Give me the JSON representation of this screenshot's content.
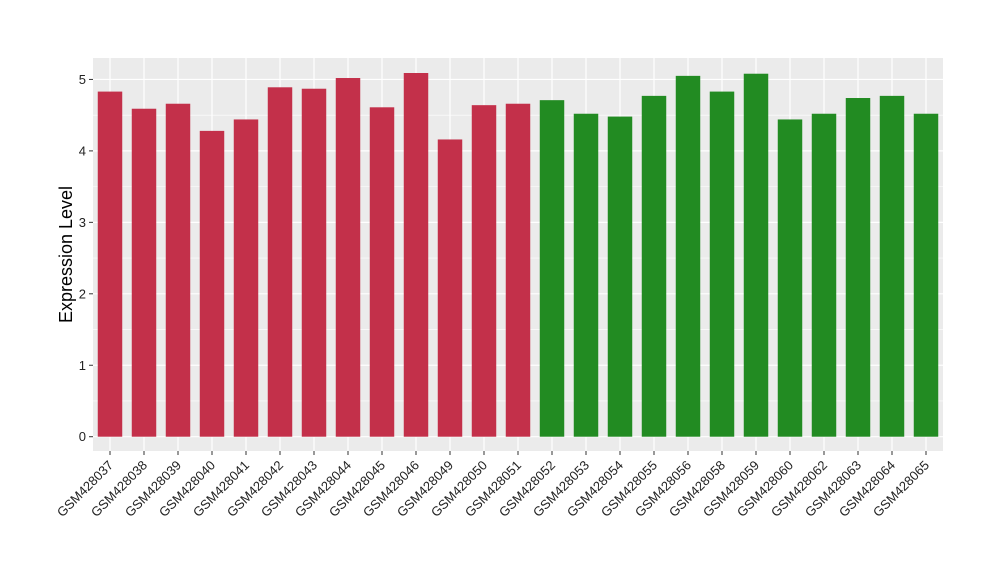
{
  "chart_data": {
    "type": "bar",
    "title": "",
    "xlabel": "",
    "ylabel": "Expression Level",
    "ylim": [
      -0.2,
      5.3
    ],
    "yticks": [
      0,
      1,
      2,
      3,
      4,
      5
    ],
    "grid": true,
    "legend": "none",
    "colors": {
      "group1": "#C3304A",
      "group2": "#228B22",
      "panel": "#EBEBEB",
      "gridline": "#FFFFFF"
    },
    "categories": [
      "GSM428037",
      "GSM428038",
      "GSM428039",
      "GSM428040",
      "GSM428041",
      "GSM428042",
      "GSM428043",
      "GSM428044",
      "GSM428045",
      "GSM428046",
      "GSM428049",
      "GSM428050",
      "GSM428051",
      "GSM428052",
      "GSM428053",
      "GSM428054",
      "GSM428055",
      "GSM428056",
      "GSM428058",
      "GSM428059",
      "GSM428060",
      "GSM428062",
      "GSM428063",
      "GSM428064",
      "GSM428065"
    ],
    "values": [
      4.83,
      4.59,
      4.66,
      4.28,
      4.44,
      4.89,
      4.87,
      5.02,
      4.61,
      5.09,
      4.16,
      4.64,
      4.66,
      4.71,
      4.52,
      4.48,
      4.77,
      5.05,
      4.83,
      5.08,
      4.44,
      4.52,
      4.74,
      4.77,
      4.52
    ],
    "groups": [
      "group1",
      "group1",
      "group1",
      "group1",
      "group1",
      "group1",
      "group1",
      "group1",
      "group1",
      "group1",
      "group1",
      "group1",
      "group1",
      "group2",
      "group2",
      "group2",
      "group2",
      "group2",
      "group2",
      "group2",
      "group2",
      "group2",
      "group2",
      "group2",
      "group2"
    ]
  }
}
